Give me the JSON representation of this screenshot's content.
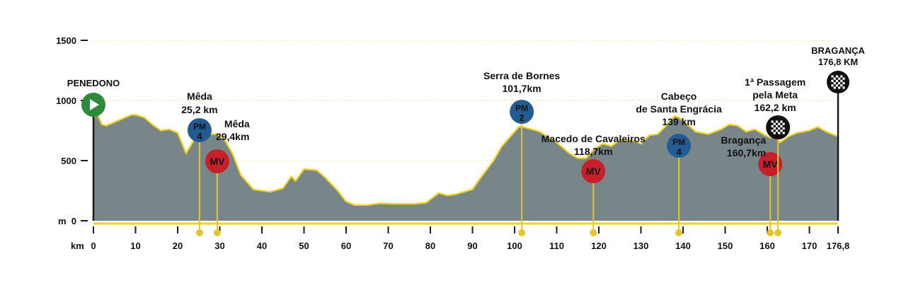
{
  "chart_data": {
    "type": "area",
    "title": "",
    "xlabel": "",
    "ylabel": "",
    "x_unit": "km",
    "y_unit": "m",
    "xlim": [
      0,
      176.8
    ],
    "ylim": [
      0,
      1800
    ],
    "x_ticks": [
      "0",
      "10",
      "20",
      "30",
      "40",
      "50",
      "60",
      "70",
      "80",
      "90",
      "100",
      "110",
      "120",
      "130",
      "140",
      "150",
      "160",
      "170",
      "176,8"
    ],
    "x_tick_values": [
      0,
      10,
      20,
      30,
      40,
      50,
      60,
      70,
      80,
      90,
      100,
      110,
      120,
      130,
      140,
      150,
      160,
      170,
      176.8
    ],
    "y_ticks": [
      "0",
      "500",
      "1000",
      "1500"
    ],
    "y_tick_values": [
      0,
      500,
      1000,
      1500
    ],
    "profile": [
      [
        0,
        860
      ],
      [
        1,
        880
      ],
      [
        2,
        800
      ],
      [
        3,
        790
      ],
      [
        5,
        820
      ],
      [
        7,
        850
      ],
      [
        9,
        880
      ],
      [
        10,
        880
      ],
      [
        12,
        860
      ],
      [
        14,
        800
      ],
      [
        16,
        750
      ],
      [
        18,
        760
      ],
      [
        20,
        730
      ],
      [
        22,
        560
      ],
      [
        24,
        680
      ],
      [
        26,
        710
      ],
      [
        28,
        720
      ],
      [
        29.4,
        720
      ],
      [
        31,
        680
      ],
      [
        33,
        560
      ],
      [
        35,
        380
      ],
      [
        38,
        260
      ],
      [
        42,
        240
      ],
      [
        45,
        270
      ],
      [
        47,
        370
      ],
      [
        48,
        330
      ],
      [
        50,
        430
      ],
      [
        53,
        420
      ],
      [
        55,
        360
      ],
      [
        58,
        250
      ],
      [
        60,
        160
      ],
      [
        62,
        130
      ],
      [
        65,
        130
      ],
      [
        68,
        145
      ],
      [
        72,
        140
      ],
      [
        76,
        140
      ],
      [
        79,
        150
      ],
      [
        82,
        230
      ],
      [
        84,
        210
      ],
      [
        86,
        220
      ],
      [
        90,
        260
      ],
      [
        92,
        360
      ],
      [
        95,
        500
      ],
      [
        97,
        620
      ],
      [
        99,
        700
      ],
      [
        101,
        780
      ],
      [
        102,
        780
      ],
      [
        103,
        770
      ],
      [
        106,
        740
      ],
      [
        110,
        650
      ],
      [
        113,
        560
      ],
      [
        115,
        520
      ],
      [
        117,
        520
      ],
      [
        119,
        600
      ],
      [
        121,
        640
      ],
      [
        123,
        620
      ],
      [
        125,
        670
      ],
      [
        128,
        670
      ],
      [
        130,
        640
      ],
      [
        132,
        710
      ],
      [
        134,
        720
      ],
      [
        136,
        790
      ],
      [
        138,
        870
      ],
      [
        139,
        860
      ],
      [
        141,
        800
      ],
      [
        143,
        740
      ],
      [
        146,
        720
      ],
      [
        149,
        760
      ],
      [
        151,
        800
      ],
      [
        153,
        790
      ],
      [
        155,
        740
      ],
      [
        157,
        760
      ],
      [
        159,
        720
      ],
      [
        160.7,
        690
      ],
      [
        162,
        700
      ],
      [
        163,
        650
      ],
      [
        165,
        700
      ],
      [
        167,
        730
      ],
      [
        170,
        750
      ],
      [
        172,
        780
      ],
      [
        174,
        740
      ],
      [
        176.8,
        700
      ]
    ],
    "markers": [
      {
        "type": "start",
        "name": "PENEDONO",
        "km_label": "",
        "x": 0
      },
      {
        "type": "climb",
        "badge": "PM",
        "category": "4",
        "name": "Mêda",
        "km_label": "25,2 km",
        "x": 25.2
      },
      {
        "type": "sprint",
        "badge": "MV",
        "name": "Mêda",
        "km_label": "29,4km",
        "x": 29.4
      },
      {
        "type": "climb",
        "badge": "PM",
        "category": "2",
        "name": "Serra de Bornes",
        "km_label": "101,7km",
        "x": 101.7
      },
      {
        "type": "sprint",
        "badge": "MV",
        "name": "Macedo de Cavaleiros",
        "km_label": "118,7km",
        "x": 118.7
      },
      {
        "type": "climb",
        "badge": "PM",
        "category": "4",
        "name": "Cabeço de Santa Engrácia",
        "name_line1": "Cabeço",
        "name_line2": "de Santa Engrácia",
        "km_label": "139 km",
        "x": 139
      },
      {
        "type": "sprint",
        "badge": "MV",
        "name": "Bragança",
        "km_label": "160,7km",
        "x": 160.7
      },
      {
        "type": "passage",
        "name": "1ª Passagem pela Meta",
        "name_line1": "1ª Passagem",
        "name_line2": "pela Meta",
        "km_label": "162,2 km",
        "x": 162.2
      },
      {
        "type": "finish",
        "name": "BRAGANÇA",
        "km_label": "176,8 KM",
        "x": 176.8
      }
    ],
    "colors": {
      "profile_fill": "#78868a",
      "profile_edge": "#f2d31a",
      "axis": "#1a1a1a",
      "climb_badge": "#235c93",
      "sprint_badge": "#c8202a",
      "start_badge": "#2c8a3b",
      "marker_line": "#e6c52a",
      "grid": "#e8dfa6"
    }
  }
}
